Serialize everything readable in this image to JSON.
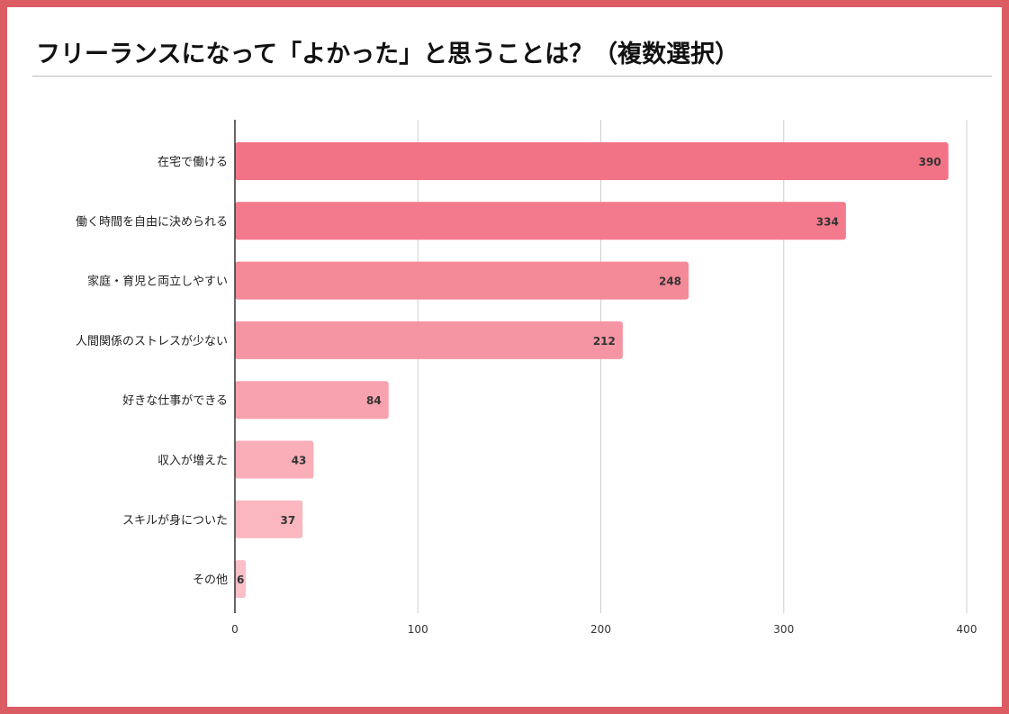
{
  "title": "フリーランスになって「よかった」と思うことは？（複数選択）",
  "colors": {
    "border": "#dc5c64"
  },
  "chart_data": {
    "type": "bar",
    "orientation": "horizontal",
    "categories": [
      "在宅で働ける",
      "働く時間を自由に決められる",
      "家庭・育児と両立しやすい",
      "人間関係のストレスが少ない",
      "好きな仕事ができる",
      "収入が増えた",
      "スキルが身についた",
      "その他"
    ],
    "values": [
      390,
      334,
      248,
      212,
      84,
      43,
      37,
      6
    ],
    "data_labels": [
      "390",
      "334",
      "248",
      "212",
      "84",
      "43",
      "37",
      "6"
    ],
    "bar_colors": [
      "#f27386",
      "#f37a8c",
      "#f48998",
      "#f595a3",
      "#f7a2ae",
      "#f9aeb8",
      "#fab7c0",
      "#fbbfc7"
    ],
    "xlim": [
      0,
      400
    ],
    "x_ticks": [
      "0",
      "100",
      "200",
      "300",
      "400"
    ],
    "grid": "vertical",
    "legend": "none"
  }
}
